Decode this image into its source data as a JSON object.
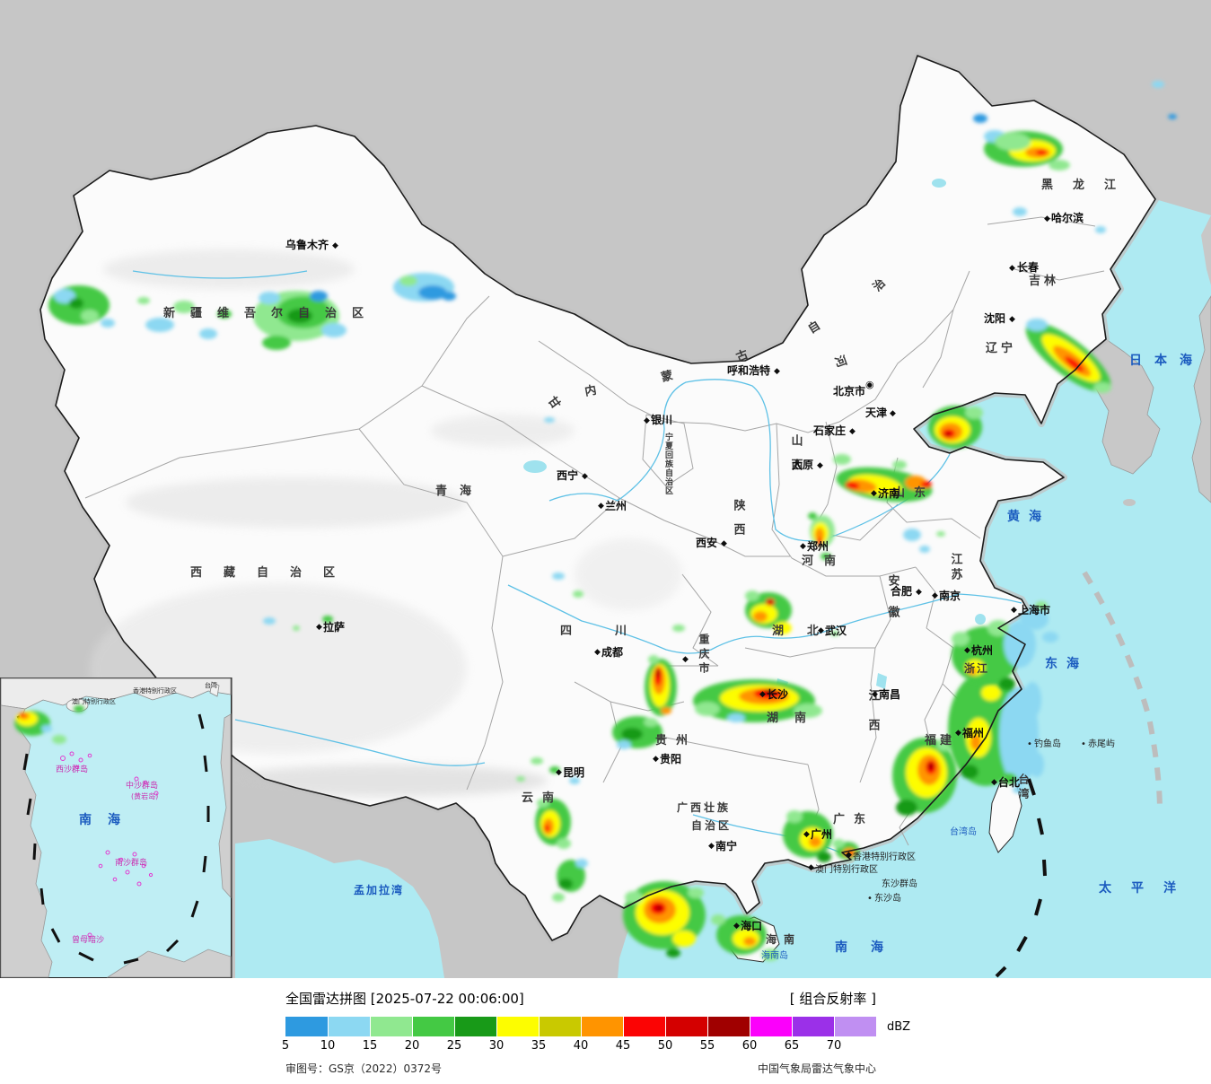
{
  "map": {
    "marker": "◆",
    "capital_marker": "◉",
    "dot": "•",
    "provinces": {
      "heilongjiang": "黑龙江",
      "jilin": "吉林",
      "liaoning": "辽宁",
      "neimenggu": "内蒙古自治区",
      "xinjiang": "新疆维吾尔自治区",
      "gansu": "甘肃",
      "qinghai": "青海",
      "xizang": "西藏自治区",
      "sichuan": "四川",
      "yunnan": "云南",
      "guizhou": "贵州",
      "chongqing": "重庆市",
      "shaanxi": "陕西",
      "shanxi": "山西",
      "hebei": "河北",
      "henan": "河南",
      "shandong": "山东",
      "anhui": "安徽",
      "jiangsu": "江苏",
      "zhejiang": "浙江",
      "hubei": "湖北",
      "hunan": "湖南",
      "jiangxi": "江西",
      "fujian": "福建",
      "taiwan": "台湾",
      "guangdong": "广东",
      "guangxi_line1": "广西壮族",
      "guangxi_line2": "自治区",
      "ningxia": "宁夏回族自治区",
      "hainan": "海南",
      "hongkong": "香港特别行政区",
      "macau": "澳门特别行政区"
    },
    "cities": {
      "wulumuqi": "乌鲁木齐",
      "haerbin": "哈尔滨",
      "changchun": "长春",
      "shenyang": "沈阳",
      "huhehaote": "呼和浩特",
      "beijing": "北京市",
      "tianjin": "天津",
      "shijiazhuang": "石家庄",
      "taiyuan": "太原",
      "yinchuan": "银川",
      "xining": "西宁",
      "lanzhou": "兰州",
      "xian": "西安",
      "zhengzhou": "郑州",
      "jinan": "济南",
      "hefei": "合肥",
      "nanjing": "南京",
      "shanghai": "上海市",
      "hangzhou": "杭州",
      "wuhan": "武汉",
      "chengdu": "成都",
      "changsha": "长沙",
      "nanchang": "南昌",
      "fuzhou": "福州",
      "taibei": "台北",
      "guiyang": "贵阳",
      "kunming": "昆明",
      "lasa": "拉萨",
      "nanning": "南宁",
      "guangzhou": "广州",
      "haikou": "海口"
    },
    "seas": {
      "riben": "日本海",
      "huanghai": "黄海",
      "donghai": "东海",
      "nanhai": "南海",
      "taipingyang": "太平洋",
      "mengjialawan": "孟加拉湾"
    },
    "islands": {
      "diaoyudao": "钓鱼岛",
      "chiweiyu": "赤尾屿",
      "taiwandao": "台湾岛",
      "hainandao": "海南岛",
      "dongshaqundao": "东沙群岛",
      "dongshadao": "东沙岛"
    },
    "inset": {
      "nanhai": "南海",
      "taiwan": "台湾",
      "hongkong": "香港特别行政区",
      "macau": "澳门特别行政区",
      "xisha": "西沙群岛",
      "zhongsha": "中沙群岛",
      "huangyan": "(黄岩岛)",
      "nansha": "南沙群岛",
      "zengmu": "曾母暗沙"
    }
  },
  "legend": {
    "title": "全国雷达拼图 [2025-07-22 00:06:00]",
    "product": "[ 组合反射率 ]",
    "unit": "dBZ",
    "values": [
      "5",
      "10",
      "15",
      "20",
      "25",
      "30",
      "35",
      "40",
      "45",
      "50",
      "55",
      "60",
      "65",
      "70"
    ],
    "colors": [
      "#2e9ae0",
      "#8cd8f2",
      "#90e890",
      "#44c944",
      "#189a18",
      "#fdfd00",
      "#c9c900",
      "#ff9400",
      "#fb0404",
      "#d40000",
      "#a00000",
      "#fb00fb",
      "#9b30e8",
      "#c08ff2"
    ],
    "approval": "审图号：GS京（2022）0372号",
    "credit": "中国气象局雷达气象中心"
  }
}
